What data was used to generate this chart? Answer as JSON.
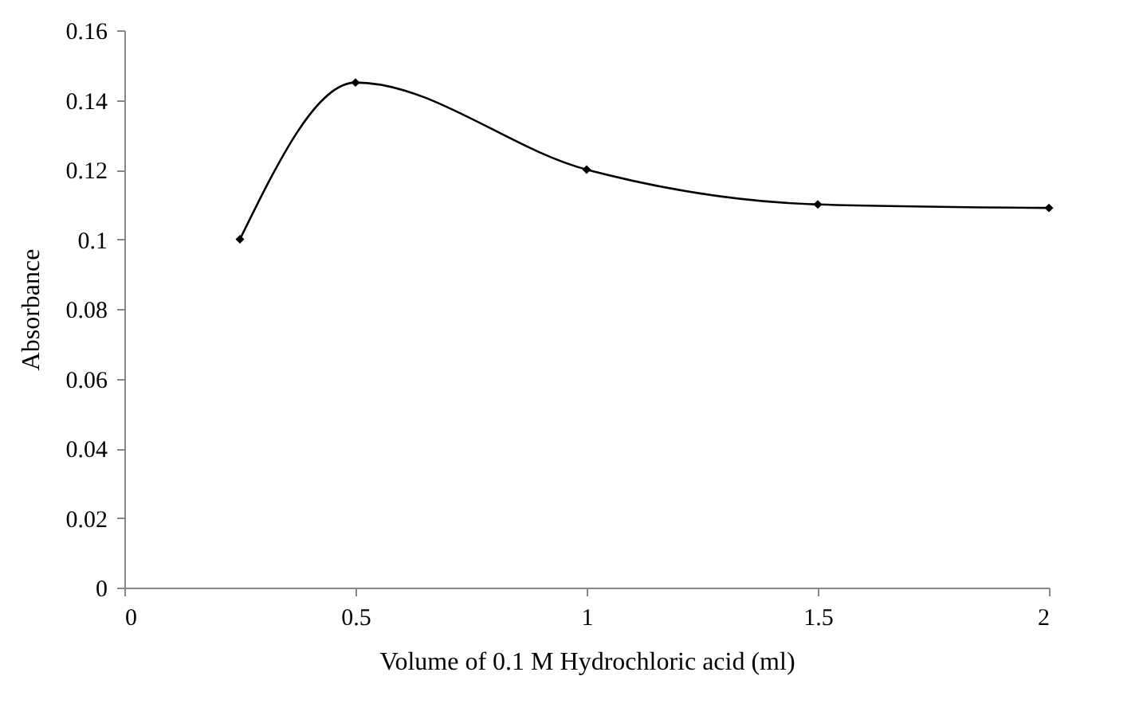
{
  "chart_data": {
    "type": "line",
    "xlabel": "Volume of 0.1 M Hydrochloric acid (ml)",
    "ylabel": "Absorbance",
    "x": [
      0.25,
      0.5,
      1,
      1.5,
      2
    ],
    "series": [
      {
        "color": "#000000",
        "values": [
          0.1,
          0.145,
          0.12,
          0.11,
          0.109
        ]
      }
    ],
    "xlim": [
      0,
      2
    ],
    "xticks": [
      0,
      0.5,
      1,
      1.5,
      2
    ],
    "ylim": [
      0,
      0.16
    ],
    "yticks": [
      0,
      0.02,
      0.04,
      0.06,
      0.08,
      0.1,
      0.12,
      0.14,
      0.16
    ],
    "grid": false,
    "legend": false,
    "marker": "diamond",
    "line_style": "solid"
  }
}
